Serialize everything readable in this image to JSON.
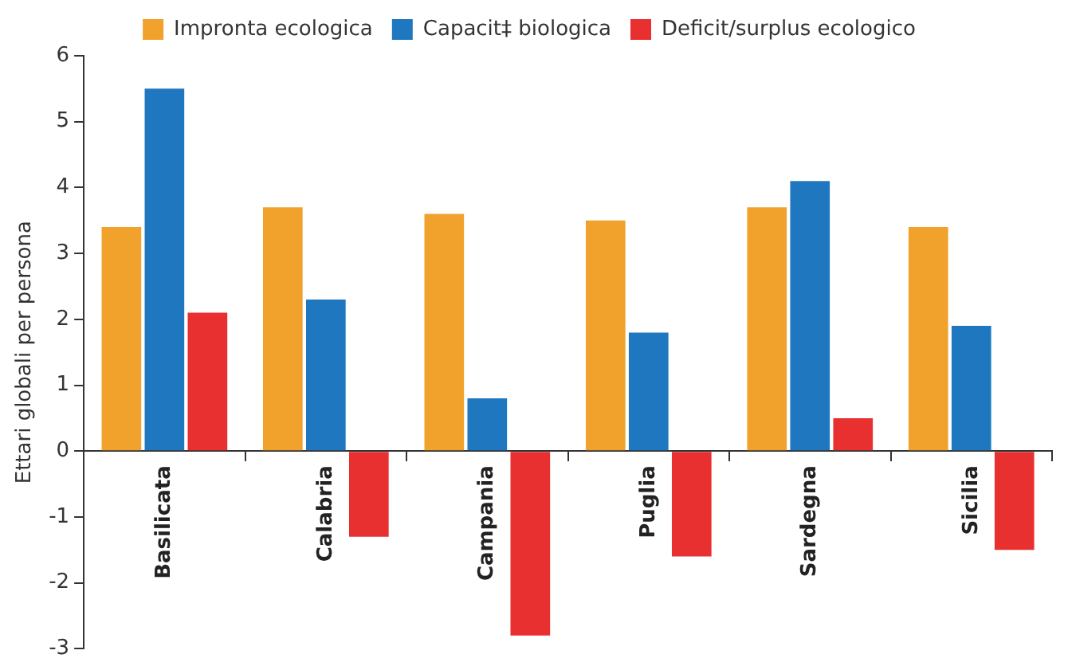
{
  "chart_data": {
    "type": "bar",
    "ylabel": "Ettari globali per persona",
    "categories": [
      "Basilicata",
      "Calabria",
      "Campania",
      "Puglia",
      "Sardegna",
      "Sicilia"
    ],
    "series": [
      {
        "name": "Impronta ecologica",
        "color": "#f0a22c",
        "values": [
          3.4,
          3.7,
          3.6,
          3.5,
          3.7,
          3.4
        ]
      },
      {
        "name": "Capacit‡ biologica",
        "color": "#1f78bf",
        "values": [
          5.5,
          2.3,
          0.8,
          1.8,
          4.1,
          1.9
        ]
      },
      {
        "name": "Deficit/surplus ecologico",
        "color": "#e93030",
        "values": [
          2.1,
          -1.3,
          -2.8,
          -1.6,
          0.5,
          -1.5
        ]
      }
    ],
    "ylim": [
      -3,
      6
    ],
    "yticks": [
      -3,
      -2,
      -1,
      0,
      1,
      2,
      3,
      4,
      5,
      6
    ],
    "grid": false,
    "legend": "top"
  }
}
